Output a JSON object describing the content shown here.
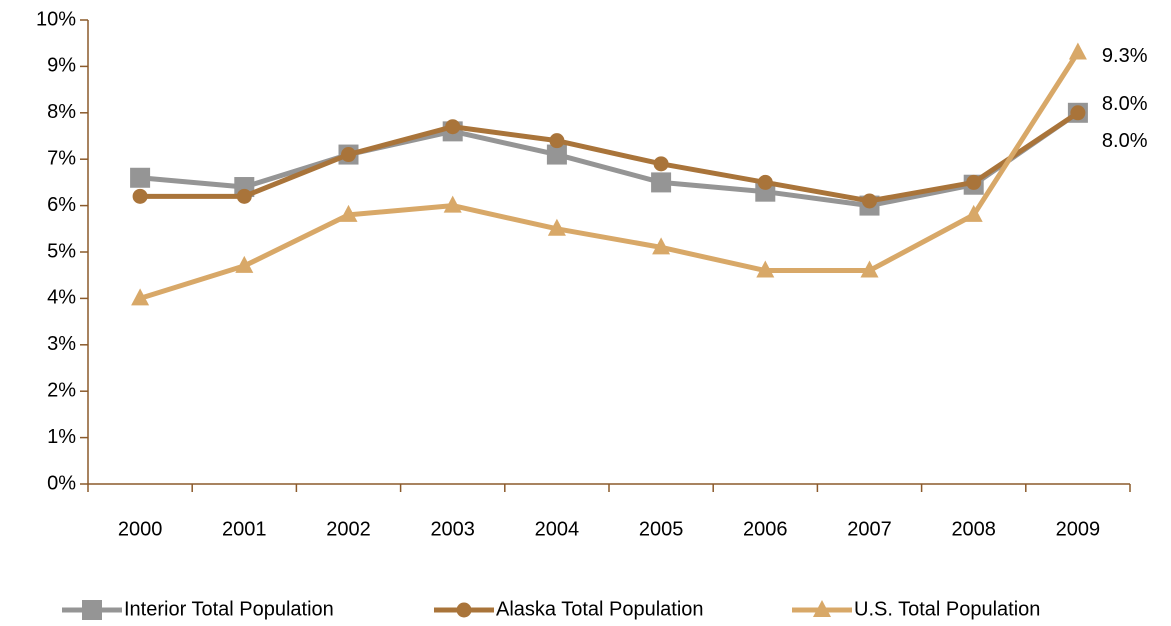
{
  "chart_data": {
    "type": "line",
    "categories": [
      "2000",
      "2001",
      "2002",
      "2003",
      "2004",
      "2005",
      "2006",
      "2007",
      "2008",
      "2009"
    ],
    "series": [
      {
        "name": "Interior Total Population",
        "color": "#959595",
        "marker": "square",
        "values": [
          6.6,
          6.4,
          7.1,
          7.6,
          7.1,
          6.5,
          6.3,
          6.0,
          6.45,
          8.0
        ],
        "value_labels": [
          null,
          null,
          null,
          null,
          null,
          null,
          null,
          null,
          null,
          "8.0%"
        ]
      },
      {
        "name": "Alaska Total Population",
        "color": "#a9743a",
        "marker": "circle",
        "values": [
          6.2,
          6.2,
          7.1,
          7.7,
          7.4,
          6.9,
          6.5,
          6.1,
          6.5,
          8.0
        ],
        "value_labels": [
          null,
          null,
          null,
          null,
          null,
          null,
          null,
          null,
          null,
          "8.0%"
        ]
      },
      {
        "name": "U.S. Total Population",
        "color": "#d8a868",
        "marker": "triangle",
        "values": [
          4.0,
          4.7,
          5.8,
          6.0,
          5.5,
          5.1,
          4.6,
          4.6,
          5.8,
          9.3
        ],
        "value_labels": [
          null,
          null,
          null,
          null,
          null,
          null,
          null,
          null,
          null,
          "9.3%"
        ]
      }
    ],
    "ylim": [
      0,
      10
    ],
    "yticks": [
      {
        "value": 0,
        "label": "0%"
      },
      {
        "value": 1,
        "label": "1%"
      },
      {
        "value": 2,
        "label": "2%"
      },
      {
        "value": 3,
        "label": "3%"
      },
      {
        "value": 4,
        "label": "4%"
      },
      {
        "value": 5,
        "label": "5%"
      },
      {
        "value": 6,
        "label": "6%"
      },
      {
        "value": 7,
        "label": "7%"
      },
      {
        "value": 8,
        "label": "8%"
      },
      {
        "value": 9,
        "label": "9%"
      },
      {
        "value": 10,
        "label": "10%"
      }
    ],
    "legend": "bottom"
  }
}
